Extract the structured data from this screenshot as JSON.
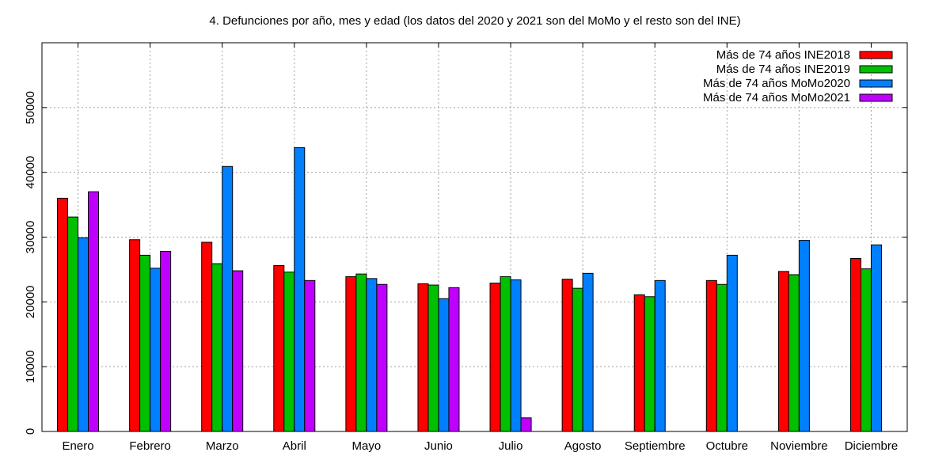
{
  "chart_data": {
    "type": "bar",
    "title": "4. Defunciones por año, mes y edad (los datos del 2020 y 2021 son del MoMo y el resto son del INE)",
    "xlabel": "",
    "ylabel": "",
    "ylim": [
      0,
      60000
    ],
    "yticks": [
      0,
      10000,
      20000,
      30000,
      40000,
      50000
    ],
    "grid": true,
    "legend_position": "top-right",
    "categories": [
      "Enero",
      "Febrero",
      "Marzo",
      "Abril",
      "Mayo",
      "Junio",
      "Julio",
      "Agosto",
      "Septiembre",
      "Octubre",
      "Noviembre",
      "Diciembre"
    ],
    "series": [
      {
        "name": "Más de 74 años INE2018",
        "color": "#ff0000",
        "values": [
          36000,
          29600,
          29200,
          25600,
          23900,
          22800,
          22900,
          23500,
          21100,
          23300,
          24700,
          26700
        ]
      },
      {
        "name": "Más de 74 años INE2019",
        "color": "#00c000",
        "values": [
          33100,
          27200,
          25900,
          24600,
          24300,
          22600,
          23900,
          22100,
          20800,
          22700,
          24200,
          25100
        ]
      },
      {
        "name": "Más de 74 años MoMo2020",
        "color": "#0080ff",
        "values": [
          29900,
          25200,
          40900,
          43800,
          23600,
          20500,
          23400,
          24400,
          23300,
          27200,
          29500,
          28800
        ]
      },
      {
        "name": "Más de 74 años MoMo2021",
        "color": "#c000ff",
        "values": [
          37000,
          27800,
          24800,
          23300,
          22700,
          22200,
          2100,
          null,
          null,
          null,
          null,
          null
        ]
      }
    ]
  }
}
